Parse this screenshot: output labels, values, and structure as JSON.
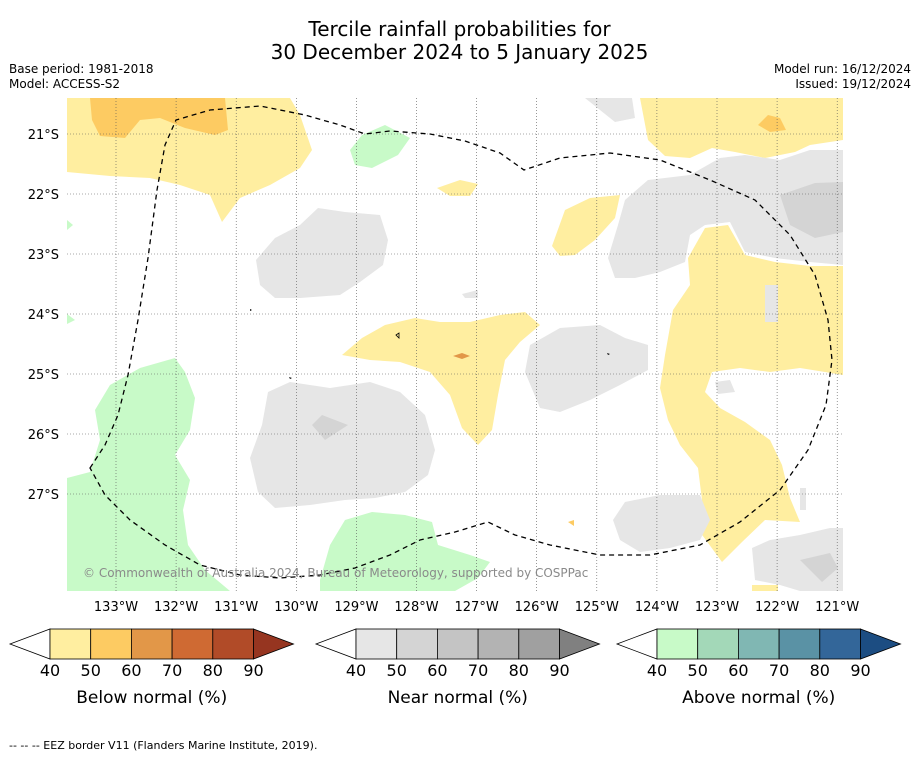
{
  "title_line1": "Tercile rainfall probabilities for",
  "title_line2": "30 December 2024 to 5 January 2025",
  "base_period": "Base period: 1981-2018",
  "model": "Model: ACCESS-S2",
  "model_run": "Model run: 16/12/2024",
  "issued": "Issued: 19/12/2024",
  "copyright": "© Commonwealth of Australia 2024, Bureau of Meteorology, supported by COSPPac",
  "footer_note": "--  --  -- EEZ border V11 (Flanders Marine Institute, 2019).",
  "lon_labels": [
    "133°W",
    "132°W",
    "131°W",
    "130°W",
    "129°W",
    "128°W",
    "127°W",
    "126°W",
    "125°W",
    "124°W",
    "123°W",
    "122°W",
    "121°W"
  ],
  "lat_labels": [
    "21°S",
    "22°S",
    "23°S",
    "24°S",
    "25°S",
    "26°S",
    "27°S"
  ],
  "colorbars": [
    {
      "label": "Below normal (%)",
      "ticks": [
        "40",
        "50",
        "60",
        "70",
        "80",
        "90"
      ],
      "colors": [
        "#ffeea0",
        "#fdcb62",
        "#e29748",
        "#cf6a33",
        "#b14b28",
        "#963520"
      ]
    },
    {
      "label": "Near normal (%)",
      "ticks": [
        "40",
        "50",
        "60",
        "70",
        "80",
        "90"
      ],
      "colors": [
        "#e6e6e6",
        "#d4d4d4",
        "#c4c4c4",
        "#b3b3b3",
        "#a0a0a0",
        "#808080"
      ]
    },
    {
      "label": "Above normal (%)",
      "ticks": [
        "40",
        "50",
        "60",
        "70",
        "80",
        "90"
      ],
      "colors": [
        "#c8fac8",
        "#a3d8b8",
        "#80b7b3",
        "#5a92a5",
        "#336699",
        "#1c4d82"
      ]
    }
  ]
}
